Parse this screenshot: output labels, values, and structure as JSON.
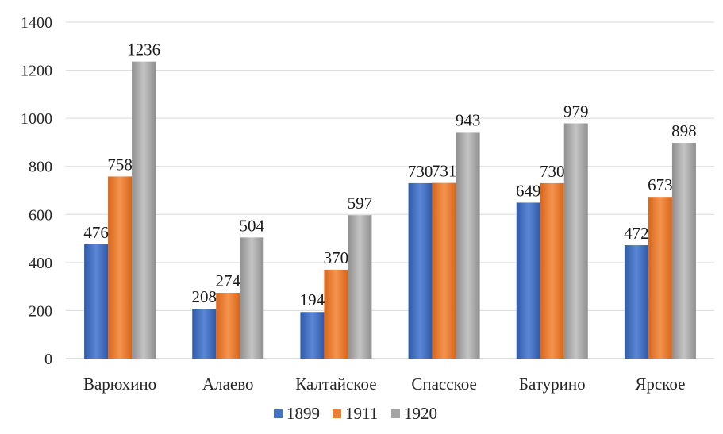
{
  "chart_data": {
    "type": "bar",
    "title": "",
    "xlabel": "",
    "ylabel": "",
    "ylim": [
      0,
      1400
    ],
    "yticks": [
      0,
      200,
      400,
      600,
      800,
      1000,
      1200,
      1400
    ],
    "grid": true,
    "legend_position": "bottom",
    "categories": [
      "Варюхино",
      "Алаево",
      "Калтайское",
      "Спасское",
      "Батурино",
      "Ярское"
    ],
    "series": [
      {
        "name": "1899",
        "color": "#4472c4",
        "values": [
          476,
          208,
          194,
          730,
          649,
          472
        ]
      },
      {
        "name": "1911",
        "color": "#ed7d31",
        "values": [
          758,
          274,
          370,
          731,
          730,
          673
        ]
      },
      {
        "name": "1920",
        "color": "#a5a5a5",
        "values": [
          1236,
          504,
          597,
          943,
          979,
          898
        ]
      }
    ]
  }
}
